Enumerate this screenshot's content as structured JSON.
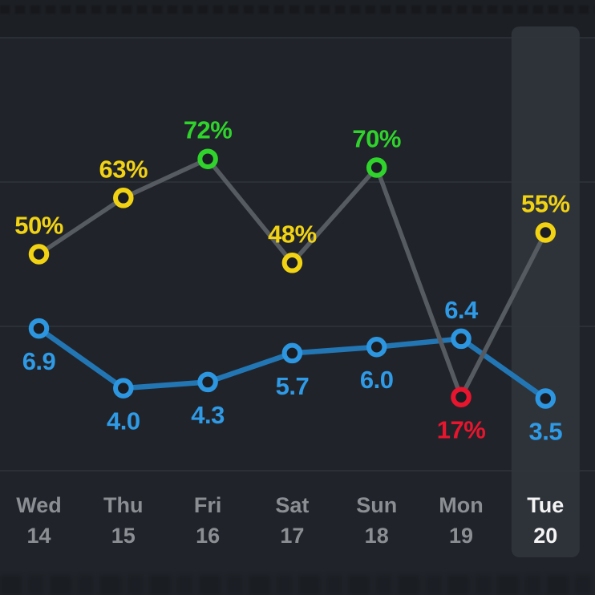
{
  "chart_data": {
    "type": "line",
    "title": "",
    "categories": [
      "Wed",
      "Thu",
      "Fri",
      "Sat",
      "Sun",
      "Mon",
      "Tue"
    ],
    "category_dates": [
      "14",
      "15",
      "16",
      "17",
      "18",
      "19",
      "20"
    ],
    "highlighted_index": 6,
    "grid": "on",
    "grid_divisions": 3,
    "legend_position": "none",
    "series": [
      {
        "name": "hours-slept",
        "values": [
          6.9,
          4.0,
          4.3,
          5.7,
          6.0,
          6.4,
          3.5
        ],
        "labels": [
          "6.9",
          "4.0",
          "4.3",
          "5.7",
          "6.0",
          "6.4",
          "3.5"
        ],
        "label_side": [
          "below",
          "below",
          "below",
          "below",
          "below",
          "above",
          "below"
        ],
        "ylim": [
          0,
          21
        ],
        "line_color": "#2376b4",
        "point_colors": [
          "#2d96e0",
          "#2d96e0",
          "#2d96e0",
          "#2d96e0",
          "#2d96e0",
          "#2d96e0",
          "#2d96e0"
        ],
        "label_colors": [
          "#2f9ae6",
          "#2f9ae6",
          "#2f9ae6",
          "#2f9ae6",
          "#2f9ae6",
          "#2f9ae6",
          "#2f9ae6"
        ]
      },
      {
        "name": "sleep-quality-percent",
        "values": [
          50,
          63,
          72,
          48,
          70,
          17,
          55
        ],
        "labels": [
          "50%",
          "63%",
          "72%",
          "48%",
          "70%",
          "17%",
          "55%"
        ],
        "label_side": [
          "above",
          "above",
          "above",
          "above",
          "above",
          "below",
          "above"
        ],
        "ylim": [
          0,
          100
        ],
        "line_color": "#565b61",
        "point_colors": [
          "#f2d313",
          "#f2d313",
          "#30d32c",
          "#f2d313",
          "#30d32c",
          "#e8152e",
          "#f2d313"
        ],
        "label_colors": [
          "#f2d313",
          "#f2d313",
          "#30d32c",
          "#f2d313",
          "#30d32c",
          "#e8152e",
          "#f2d313"
        ]
      }
    ],
    "colors": {
      "background": "#20242a",
      "top_band": "rgba(0,0,0,0.12)",
      "grid_line": "#2f343b",
      "marker_fill": "#1a1e24",
      "axis_label": "#8b8e93",
      "axis_label_selected": "#f4f4f4",
      "highlight_fill": "#2e333a"
    }
  }
}
